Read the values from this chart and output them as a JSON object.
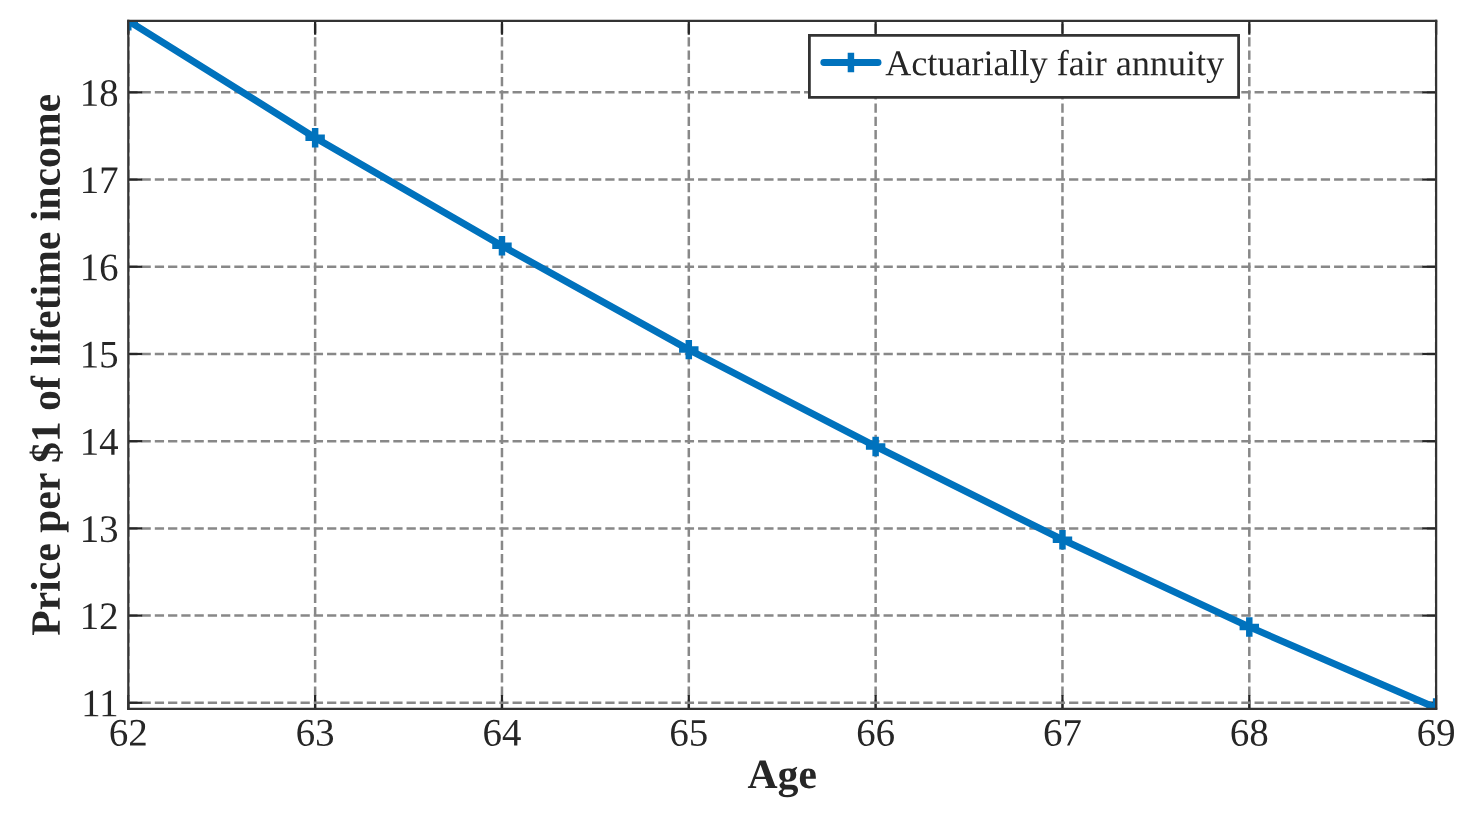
{
  "chart_data": {
    "type": "line",
    "xlabel": "Age",
    "ylabel": "Price per $1 of lifetime income",
    "x": [
      62,
      63,
      64,
      65,
      66,
      67,
      68,
      69
    ],
    "series": [
      {
        "name": "Actuarially fair annuity",
        "color": "#0072bd",
        "values": [
          18.82,
          17.48,
          16.24,
          15.05,
          13.94,
          12.87,
          11.87,
          10.94
        ]
      }
    ],
    "xlim": [
      62,
      69
    ],
    "xticks": [
      62,
      63,
      64,
      65,
      66,
      67,
      68,
      69
    ],
    "ylim": [
      10.93,
      18.82
    ],
    "yticks": [
      11,
      12,
      13,
      14,
      15,
      16,
      17,
      18
    ],
    "grid": true,
    "legend": "top right",
    "marker": "cross",
    "line_style": "solid"
  }
}
